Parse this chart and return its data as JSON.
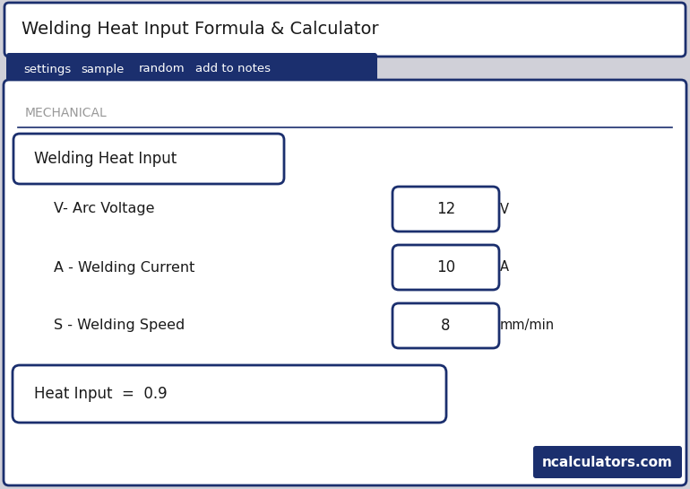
{
  "title": "Welding Heat Input Formula & Calculator",
  "tabs": [
    "settings",
    "sample",
    "random",
    "add to notes"
  ],
  "section_label": "MECHANICAL",
  "input_label": "Welding Heat Input",
  "fields": [
    {
      "label": "V- Arc Voltage",
      "value": "12",
      "unit": "V"
    },
    {
      "label": "A - Welding Current",
      "value": "10",
      "unit": "A"
    },
    {
      "label": "S - Welding Speed",
      "value": "8",
      "unit": "mm/min"
    }
  ],
  "result_label": "Heat Input  =  0.9",
  "brand": "ncalculators.com",
  "bg_color": "#d0d0d8",
  "card_bg": "#ffffff",
  "nav_bg": "#1b2f6e",
  "nav_text": "#ffffff",
  "border_color": "#1b2f6e",
  "section_text_color": "#999999",
  "label_color": "#1a1a1a",
  "value_color": "#1a1a1a",
  "brand_bg": "#1b2f6e",
  "brand_text": "#ffffff",
  "title_fontsize": 14,
  "tab_fontsize": 9.5,
  "section_fontsize": 10,
  "field_label_fontsize": 11.5,
  "value_fontsize": 12,
  "unit_fontsize": 10.5,
  "result_fontsize": 12,
  "brand_fontsize": 11,
  "input_label_fontsize": 12
}
